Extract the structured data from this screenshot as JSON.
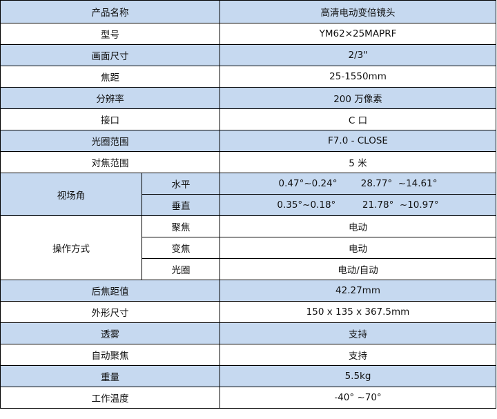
{
  "shade_color": "#c6d9f0",
  "rows": {
    "name": {
      "label": "产品名称",
      "value": "高清电动变倍镜头"
    },
    "model": {
      "label": "型号",
      "value": "YM62×25MAPRF"
    },
    "format": {
      "label": "画面尺寸",
      "value": "2/3\""
    },
    "focal": {
      "label": "焦距",
      "value": "25-1550mm"
    },
    "resolution": {
      "label": "分辨率",
      "value": "200 万像素"
    },
    "mount": {
      "label": "接口",
      "value": "C 口"
    },
    "aperture": {
      "label": "光圈范围",
      "value": "F7.0 - CLOSE"
    },
    "mod": {
      "label": "对焦范围",
      "value": "5 米"
    },
    "fov": {
      "label": "视场角",
      "h": {
        "label": "水平",
        "value": "0.47°~0.24°        28.77°  ~14.61°"
      },
      "v": {
        "label": "垂直",
        "value": "0.35°~0.18°         21.78°  ~10.97°"
      }
    },
    "operation": {
      "label": "操作方式",
      "focus": {
        "label": "聚焦",
        "value": "电动"
      },
      "zoom": {
        "label": "变焦",
        "value": "电动"
      },
      "iris": {
        "label": "光圈",
        "value": "电动/自动"
      }
    },
    "bfl": {
      "label": "后焦距值",
      "value": "42.27mm"
    },
    "dimensions": {
      "label": "外形尺寸",
      "value": "150 x 135 x 367.5mm"
    },
    "defog": {
      "label": "透雾",
      "value": "支持"
    },
    "autofocus": {
      "label": "自动聚焦",
      "value": "支持"
    },
    "weight": {
      "label": "重量",
      "value": "5.5kg"
    },
    "temp": {
      "label": "工作温度",
      "value": "-40° ~70°"
    }
  }
}
